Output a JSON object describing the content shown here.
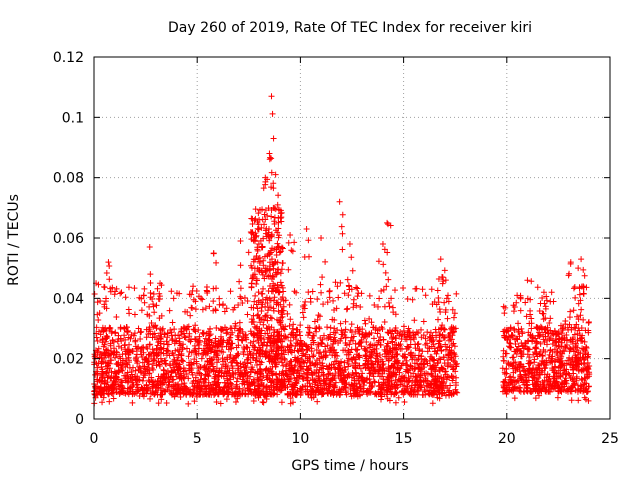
{
  "chart_data": {
    "type": "scatter",
    "title": "Day 260 of 2019, Rate Of TEC Index for receiver kiri",
    "xlabel": "GPS time / hours",
    "ylabel": "ROTI / TECUs",
    "xlim": [
      0,
      25
    ],
    "ylim": [
      0,
      0.12
    ],
    "xticks": [
      "0",
      "5",
      "10",
      "15",
      "20",
      "25"
    ],
    "xtick_values": [
      0,
      5,
      10,
      15,
      20,
      25
    ],
    "yticks": [
      "0",
      "0.02",
      "0.04",
      "0.06",
      "0.08",
      "0.1",
      "0.12"
    ],
    "ytick_values": [
      0,
      0.02,
      0.04,
      0.06,
      0.08,
      0.1,
      0.12
    ],
    "grid": true,
    "marker": "+",
    "color": "#ff0000",
    "series": [
      {
        "name": "ROTI",
        "segments": [
          {
            "x_start": 0.0,
            "x_end": 17.6,
            "typical_min": 0.005,
            "typical_max": 0.035,
            "median": 0.015
          },
          {
            "x_start": 19.8,
            "x_end": 24.0,
            "typical_min": 0.006,
            "typical_max": 0.035,
            "median": 0.016
          }
        ],
        "peaks": [
          {
            "x": 0.1,
            "y": 0.045
          },
          {
            "x": 0.7,
            "y": 0.052
          },
          {
            "x": 2.7,
            "y": 0.057
          },
          {
            "x": 3.2,
            "y": 0.045
          },
          {
            "x": 4.8,
            "y": 0.044
          },
          {
            "x": 5.8,
            "y": 0.055
          },
          {
            "x": 7.1,
            "y": 0.059
          },
          {
            "x": 7.6,
            "y": 0.062
          },
          {
            "x": 8.0,
            "y": 0.066
          },
          {
            "x": 8.3,
            "y": 0.08
          },
          {
            "x": 8.5,
            "y": 0.088
          },
          {
            "x": 8.6,
            "y": 0.107
          },
          {
            "x": 8.7,
            "y": 0.093
          },
          {
            "x": 8.8,
            "y": 0.081
          },
          {
            "x": 8.9,
            "y": 0.071
          },
          {
            "x": 9.5,
            "y": 0.061
          },
          {
            "x": 10.3,
            "y": 0.063
          },
          {
            "x": 11.0,
            "y": 0.06
          },
          {
            "x": 11.9,
            "y": 0.072
          },
          {
            "x": 12.4,
            "y": 0.058
          },
          {
            "x": 14.2,
            "y": 0.065
          },
          {
            "x": 14.0,
            "y": 0.058
          },
          {
            "x": 16.8,
            "y": 0.053
          },
          {
            "x": 16.9,
            "y": 0.047
          },
          {
            "x": 20.5,
            "y": 0.041
          },
          {
            "x": 21.0,
            "y": 0.046
          },
          {
            "x": 21.8,
            "y": 0.042
          },
          {
            "x": 23.1,
            "y": 0.052
          },
          {
            "x": 23.6,
            "y": 0.053
          },
          {
            "x": 23.7,
            "y": 0.044
          }
        ]
      }
    ]
  }
}
